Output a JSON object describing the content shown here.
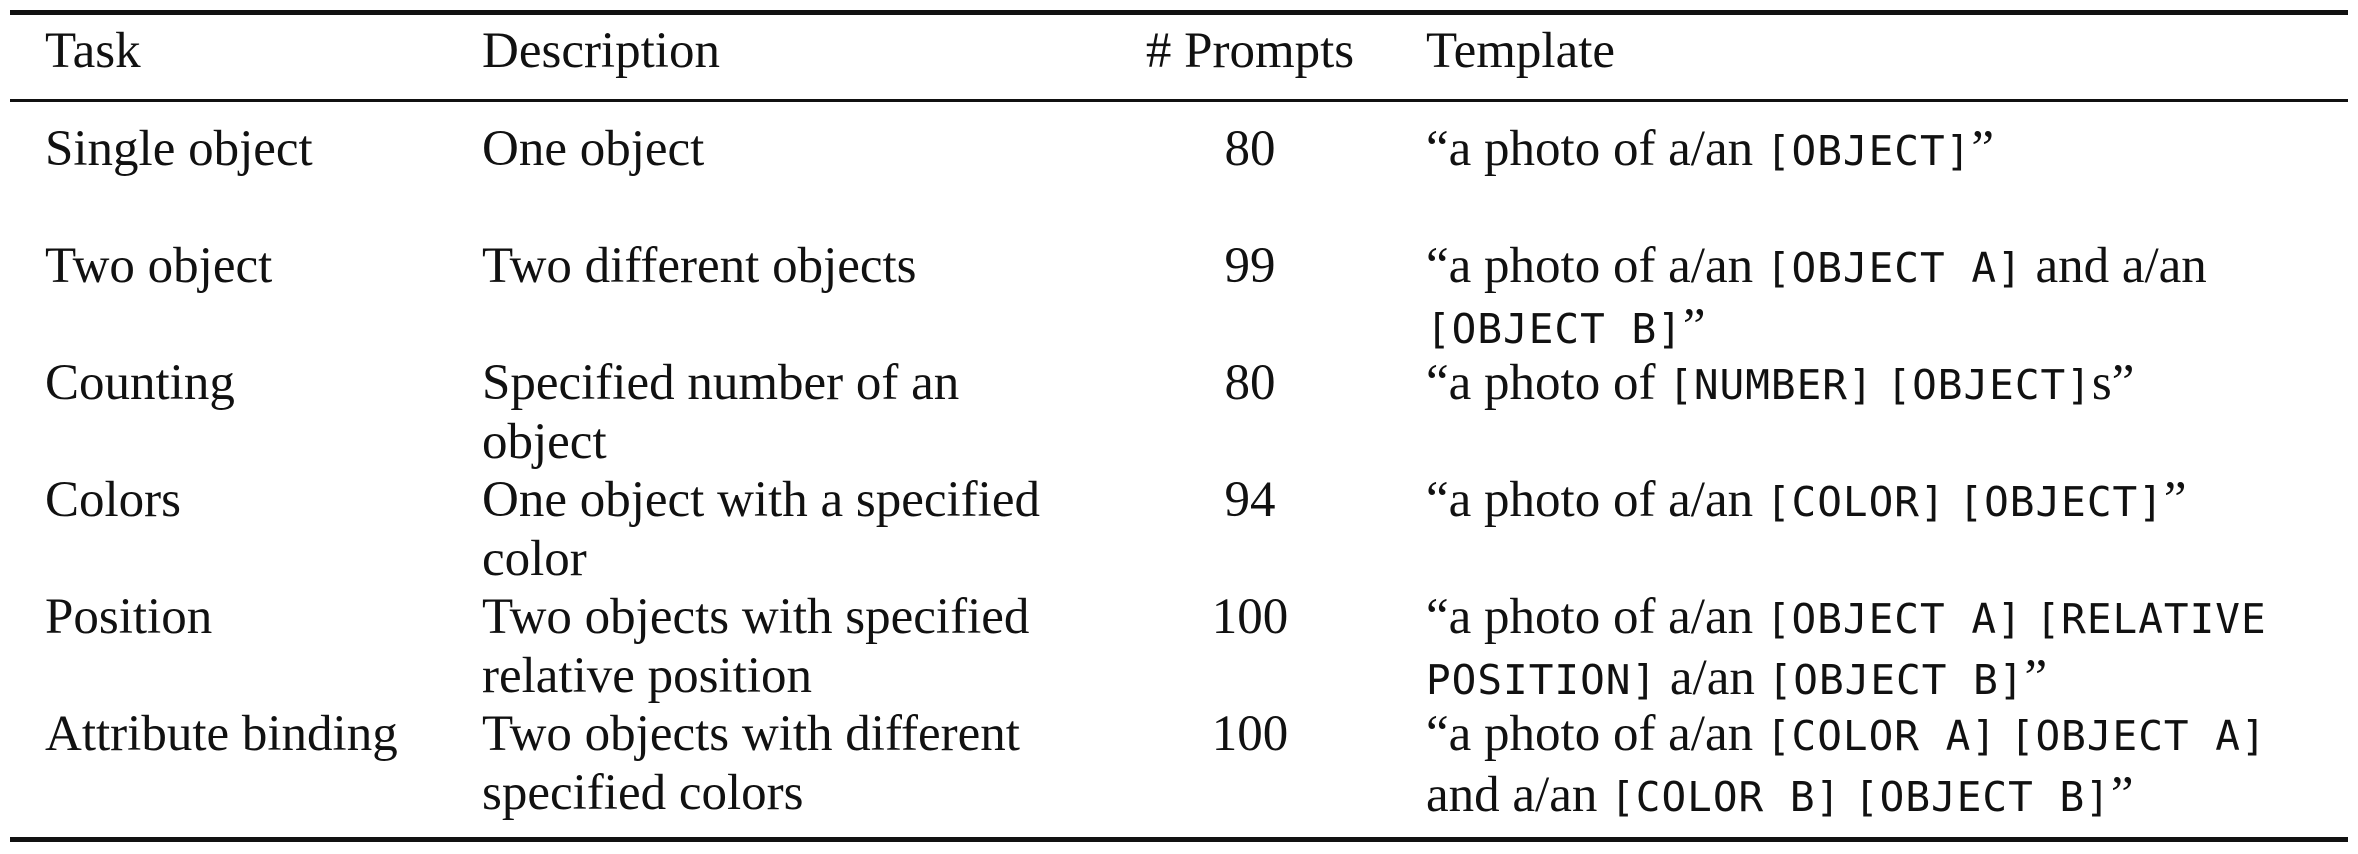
{
  "table": {
    "headers": {
      "task": "Task",
      "description": "Description",
      "prompts": "# Prompts",
      "template": "Template"
    },
    "rows": [
      {
        "task": "Single object",
        "description": [
          "One object"
        ],
        "prompts": "80",
        "template": [
          [
            {
              "t": "“a photo of a/an ",
              "m": false
            },
            {
              "t": "[OBJECT]",
              "m": true
            },
            {
              "t": "”",
              "m": false
            }
          ]
        ]
      },
      {
        "task": "Two object",
        "description": [
          "Two different objects"
        ],
        "prompts": "99",
        "template": [
          [
            {
              "t": "“a photo of a/an ",
              "m": false
            },
            {
              "t": "[OBJECT A]",
              "m": true
            },
            {
              "t": " and a/an",
              "m": false
            }
          ],
          [
            {
              "t": "[OBJECT B]",
              "m": true
            },
            {
              "t": "”",
              "m": false
            }
          ]
        ]
      },
      {
        "task": "Counting",
        "description": [
          "Specified number of an",
          "object"
        ],
        "prompts": "80",
        "template": [
          [
            {
              "t": "“a photo of ",
              "m": false
            },
            {
              "t": "[NUMBER]",
              "m": true
            },
            {
              "t": " ",
              "m": false
            },
            {
              "t": "[OBJECT]",
              "m": true
            },
            {
              "t": "s”",
              "m": false
            }
          ]
        ]
      },
      {
        "task": "Colors",
        "description": [
          "One object with a specified",
          "color"
        ],
        "prompts": "94",
        "template": [
          [
            {
              "t": "“a photo of a/an ",
              "m": false
            },
            {
              "t": "[COLOR]",
              "m": true
            },
            {
              "t": " ",
              "m": false
            },
            {
              "t": "[OBJECT]",
              "m": true
            },
            {
              "t": "”",
              "m": false
            }
          ]
        ]
      },
      {
        "task": "Position",
        "description": [
          "Two objects with specified",
          "relative position"
        ],
        "prompts": "100",
        "template": [
          [
            {
              "t": "“a photo of a/an ",
              "m": false
            },
            {
              "t": "[OBJECT A]",
              "m": true
            },
            {
              "t": " ",
              "m": false
            },
            {
              "t": "[RELATIVE",
              "m": true
            }
          ],
          [
            {
              "t": "POSITION]",
              "m": true
            },
            {
              "t": " a/an ",
              "m": false
            },
            {
              "t": "[OBJECT B]",
              "m": true
            },
            {
              "t": "”",
              "m": false
            }
          ]
        ]
      },
      {
        "task": "Attribute binding",
        "description": [
          "Two objects with different",
          "specified colors"
        ],
        "prompts": "100",
        "template": [
          [
            {
              "t": "“a photo of a/an ",
              "m": false
            },
            {
              "t": "[COLOR A]",
              "m": true
            },
            {
              "t": " ",
              "m": false
            },
            {
              "t": "[OBJECT A]",
              "m": true
            }
          ],
          [
            {
              "t": "and a/an ",
              "m": false
            },
            {
              "t": "[COLOR B]",
              "m": true
            },
            {
              "t": " ",
              "m": false
            },
            {
              "t": "[OBJECT B]",
              "m": true
            },
            {
              "t": "”",
              "m": false
            }
          ]
        ]
      }
    ]
  }
}
